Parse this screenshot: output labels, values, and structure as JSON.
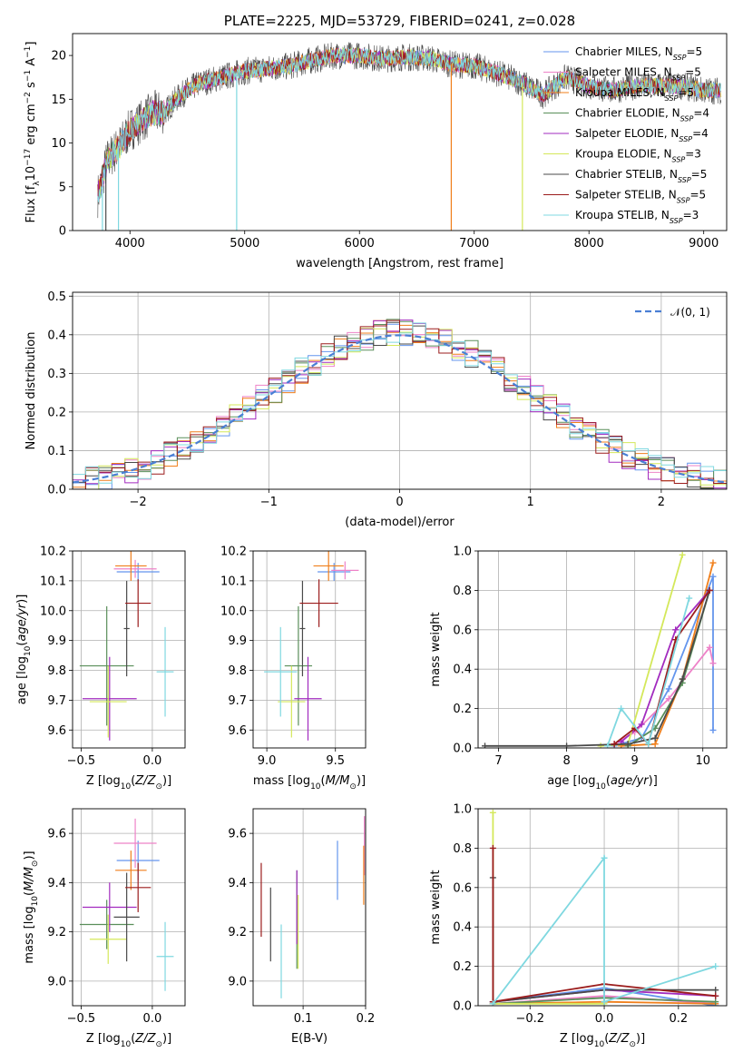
{
  "colors": {
    "chabrier_miles": "#6495ed",
    "salpeter_miles": "#ee82c8",
    "kroupa_miles": "#f07f1b",
    "chabrier_elodie": "#5a8f5a",
    "salpeter_elodie": "#a22bbf",
    "kroupa_elodie": "#d4e85a",
    "chabrier_stelib": "#4a4a4a",
    "salpeter_stelib": "#9b1c1c",
    "kroupa_stelib": "#7fd8e0"
  },
  "chart_data": [
    {
      "id": "spectrum",
      "type": "line",
      "title": "PLATE=2225, MJD=53729, FIBERID=0241, z=0.028",
      "xlabel": "wavelength [Angstrom, rest frame]",
      "ylabel": "Flux [f_λ 10^-17 erg cm^-2 s^-1 A^-1]",
      "xlim": [
        3500,
        9200
      ],
      "ylim": [
        0,
        22.5
      ],
      "xticks": [
        "4000",
        "5000",
        "6000",
        "7000",
        "8000",
        "9000"
      ],
      "yticks": [
        "0",
        "5",
        "10",
        "15",
        "20"
      ],
      "grid": false,
      "legend": "top-right",
      "continuum": {
        "x": [
          3720,
          3800,
          3900,
          4000,
          4100,
          4200,
          4300,
          4400,
          4500,
          4600,
          4800,
          5000,
          5200,
          5400,
          5600,
          5800,
          6000,
          6200,
          6400,
          6600,
          6800,
          7000,
          7200,
          7400,
          7600,
          7800,
          8000,
          8200,
          8400,
          8600,
          8800,
          9000,
          9150
        ],
        "y": [
          4,
          8,
          9.5,
          11.5,
          12.5,
          13.5,
          13.5,
          15,
          16,
          16.8,
          17.5,
          18.2,
          18.5,
          18.8,
          19.5,
          20,
          20,
          19.6,
          19.8,
          19.7,
          19,
          18.8,
          18,
          17,
          15.5,
          17.5,
          16.5,
          16,
          16.5,
          16.5,
          16.5,
          16,
          16
        ]
      },
      "series": [
        {
          "name": "Chabrier MILES, N_SSP=5",
          "legend_main": "Chabrier MILES, N",
          "legend_sub": "SSP",
          "legend_tail": "=5"
        },
        {
          "name": "Salpeter MILES, N_SSP=5",
          "legend_main": "Salpeter MILES, N",
          "legend_sub": "SSP",
          "legend_tail": "=5"
        },
        {
          "name": "Kroupa MILES, N_SSP=5",
          "legend_main": "Kroupa MILES, N",
          "legend_sub": "SSP",
          "legend_tail": "=5"
        },
        {
          "name": "Chabrier ELODIE, N_SSP=4",
          "legend_main": "Chabrier ELODIE, N",
          "legend_sub": "SSP",
          "legend_tail": "=4"
        },
        {
          "name": "Salpeter ELODIE, N_SSP=4",
          "legend_main": "Salpeter ELODIE, N",
          "legend_sub": "SSP",
          "legend_tail": "=4"
        },
        {
          "name": "Kroupa ELODIE, N_SSP=3",
          "legend_main": "Kroupa ELODIE, N",
          "legend_sub": "SSP",
          "legend_tail": "=3"
        },
        {
          "name": "Chabrier STELIB, N_SSP=5",
          "legend_main": "Chabrier STELIB, N",
          "legend_sub": "SSP",
          "legend_tail": "=5"
        },
        {
          "name": "Salpeter STELIB, N_SSP=5",
          "legend_main": "Salpeter STELIB, N",
          "legend_sub": "SSP",
          "legend_tail": "=5"
        },
        {
          "name": "Kroupa STELIB, N_SSP=3",
          "legend_main": "Kroupa STELIB, N",
          "legend_sub": "SSP",
          "legend_tail": "=3"
        }
      ]
    },
    {
      "id": "residuals",
      "type": "line",
      "xlabel": "(data-model)/error",
      "ylabel": "Normed distribution",
      "xlim": [
        -2.5,
        2.5
      ],
      "ylim": [
        0,
        0.51
      ],
      "xticks": [
        "−2",
        "−1",
        "0",
        "1",
        "2"
      ],
      "yticks": [
        "0.0",
        "0.1",
        "0.2",
        "0.3",
        "0.4",
        "0.5"
      ],
      "grid": true,
      "legend": "top-right",
      "legend_label": "𝒩(0, 1)"
    },
    {
      "id": "age_vs_Z",
      "type": "scatter",
      "xlabel": "Z [log10(Z/Z⊙)]",
      "ylabel": "age  [log10(age/yr)]",
      "xlim": [
        -0.56,
        0.23
      ],
      "ylim": [
        9.54,
        10.2
      ],
      "xticks": [
        "−0.5",
        "0.0"
      ],
      "yticks": [
        "9.6",
        "9.7",
        "9.8",
        "9.9",
        "10.0",
        "10.1",
        "10.2"
      ],
      "points": [
        {
          "s": 0,
          "x": -0.1,
          "y": 10.13,
          "xerr": 0.15,
          "yerr": 0.03
        },
        {
          "s": 1,
          "x": -0.12,
          "y": 10.14,
          "xerr": 0.15,
          "yerr": 0.03
        },
        {
          "s": 2,
          "x": -0.15,
          "y": 10.15,
          "xerr": 0.11,
          "yerr": 0.05
        },
        {
          "s": 3,
          "x": -0.32,
          "y": 9.815,
          "xerr": 0.19,
          "yerr": 0.2
        },
        {
          "s": 4,
          "x": -0.3,
          "y": 9.705,
          "xerr": 0.19,
          "yerr": 0.14
        },
        {
          "s": 5,
          "x": -0.31,
          "y": 9.695,
          "xerr": 0.13,
          "yerr": 0.12
        },
        {
          "s": 6,
          "x": -0.18,
          "y": 9.94,
          "xerr": 0.02,
          "yerr": 0.16
        },
        {
          "s": 7,
          "x": -0.1,
          "y": 10.025,
          "xerr": 0.09,
          "yerr": 0.08
        },
        {
          "s": 8,
          "x": 0.09,
          "y": 9.795,
          "xerr": 0.06,
          "yerr": 0.15
        }
      ]
    },
    {
      "id": "age_vs_mass",
      "type": "scatter",
      "xlabel": "mass [log10(M/M⊙)]",
      "ylabel": "",
      "xlim": [
        8.9,
        9.72
      ],
      "ylim": [
        9.54,
        10.2
      ],
      "xticks": [
        "9.0",
        "9.5"
      ],
      "yticks": [
        "9.6",
        "9.7",
        "9.8",
        "9.9",
        "10.0",
        "10.1",
        "10.2"
      ],
      "points": [
        {
          "s": 0,
          "x": 9.49,
          "y": 10.13,
          "xerr": 0.12,
          "yerr": 0.03
        },
        {
          "s": 1,
          "x": 9.57,
          "y": 10.135,
          "xerr": 0.1,
          "yerr": 0.03
        },
        {
          "s": 2,
          "x": 9.45,
          "y": 10.15,
          "xerr": 0.11,
          "yerr": 0.05
        },
        {
          "s": 3,
          "x": 9.23,
          "y": 9.815,
          "xerr": 0.1,
          "yerr": 0.2
        },
        {
          "s": 4,
          "x": 9.3,
          "y": 9.705,
          "xerr": 0.1,
          "yerr": 0.14
        },
        {
          "s": 5,
          "x": 9.18,
          "y": 9.695,
          "xerr": 0.1,
          "yerr": 0.12
        },
        {
          "s": 6,
          "x": 9.26,
          "y": 9.94,
          "xerr": 0.02,
          "yerr": 0.16
        },
        {
          "s": 7,
          "x": 9.38,
          "y": 10.025,
          "xerr": 0.14,
          "yerr": 0.08
        },
        {
          "s": 8,
          "x": 9.1,
          "y": 9.795,
          "xerr": 0.12,
          "yerr": 0.15
        }
      ]
    },
    {
      "id": "mass_weight_vs_age",
      "type": "line",
      "xlabel": "age  [log10(age/yr)]",
      "ylabel": "mass weight",
      "xlim": [
        6.7,
        10.35
      ],
      "ylim": [
        0,
        1
      ],
      "xticks": [
        "7",
        "8",
        "9",
        "10"
      ],
      "yticks": [
        "0.0",
        "0.2",
        "0.4",
        "0.6",
        "0.8",
        "1.0"
      ],
      "series": [
        {
          "s": 0,
          "x": [
            8.7,
            9.1,
            9.5,
            10.15,
            10.15
          ],
          "y": [
            0.01,
            0.05,
            0.3,
            0.87,
            0.09
          ]
        },
        {
          "s": 1,
          "x": [
            8.7,
            9.0,
            9.5,
            10.1,
            10.15
          ],
          "y": [
            0.02,
            0.08,
            0.25,
            0.51,
            0.43
          ]
        },
        {
          "s": 2,
          "x": [
            8.8,
            9.3,
            9.7,
            10.15
          ],
          "y": [
            0.01,
            0.02,
            0.35,
            0.94
          ]
        },
        {
          "s": 3,
          "x": [
            8.9,
            9.3,
            9.7,
            10.1
          ],
          "y": [
            0.01,
            0.1,
            0.33,
            0.8
          ]
        },
        {
          "s": 4,
          "x": [
            8.8,
            9.1,
            9.6,
            10.1
          ],
          "y": [
            0.03,
            0.12,
            0.6,
            0.8
          ]
        },
        {
          "s": 5,
          "x": [
            8.5,
            8.9,
            9.7
          ],
          "y": [
            0.01,
            0.02,
            0.98
          ]
        },
        {
          "s": 6,
          "x": [
            6.8,
            8.0,
            8.9,
            9.3,
            9.7,
            10.1
          ],
          "y": [
            0.01,
            0.01,
            0.02,
            0.05,
            0.35,
            0.8
          ]
        },
        {
          "s": 7,
          "x": [
            8.7,
            9.0,
            9.2,
            9.6,
            10.1
          ],
          "y": [
            0.02,
            0.1,
            0.02,
            0.55,
            0.8
          ]
        },
        {
          "s": 8,
          "x": [
            8.6,
            8.8,
            9.2,
            9.8
          ],
          "y": [
            0.01,
            0.2,
            0.02,
            0.76
          ]
        }
      ]
    },
    {
      "id": "mass_vs_Z",
      "type": "scatter",
      "xlabel": "Z [log10(Z/Z⊙)]",
      "ylabel": "mass [log10(M/M⊙)]",
      "xlim": [
        -0.56,
        0.23
      ],
      "ylim": [
        8.9,
        9.7
      ],
      "xticks": [
        "−0.5",
        "0.0"
      ],
      "yticks": [
        "9.0",
        "9.2",
        "9.4",
        "9.6"
      ],
      "points": [
        {
          "s": 0,
          "x": -0.1,
          "y": 9.49,
          "xerr": 0.15,
          "yerr": 0.08
        },
        {
          "s": 1,
          "x": -0.12,
          "y": 9.56,
          "xerr": 0.15,
          "yerr": 0.1
        },
        {
          "s": 2,
          "x": -0.15,
          "y": 9.45,
          "xerr": 0.11,
          "yerr": 0.08
        },
        {
          "s": 3,
          "x": -0.32,
          "y": 9.23,
          "xerr": 0.19,
          "yerr": 0.1
        },
        {
          "s": 4,
          "x": -0.3,
          "y": 9.3,
          "xerr": 0.19,
          "yerr": 0.1
        },
        {
          "s": 5,
          "x": -0.31,
          "y": 9.17,
          "xerr": 0.13,
          "yerr": 0.1
        },
        {
          "s": 6,
          "x": -0.18,
          "y": 9.26,
          "xerr": 0.09,
          "yerr": 0.18
        },
        {
          "s": 7,
          "x": -0.1,
          "y": 9.38,
          "xerr": 0.09,
          "yerr": 0.1
        },
        {
          "s": 8,
          "x": 0.09,
          "y": 9.1,
          "xerr": 0.06,
          "yerr": 0.14
        }
      ]
    },
    {
      "id": "mass_vs_ebv",
      "type": "scatter",
      "xlabel": "E(B-V)",
      "ylabel": "",
      "xlim": [
        0.02,
        0.2
      ],
      "ylim": [
        8.9,
        9.7
      ],
      "xticks": [
        "0.1",
        "0.2"
      ],
      "yticks": [
        "9.0",
        "9.2",
        "9.4",
        "9.6"
      ],
      "points": [
        {
          "s": 0,
          "x": 0.155,
          "y": 9.45,
          "xerr": 0,
          "yerr": 0.12
        },
        {
          "s": 1,
          "x": 0.198,
          "y": 9.55,
          "xerr": 0,
          "yerr": 0.12
        },
        {
          "s": 2,
          "x": 0.197,
          "y": 9.43,
          "xerr": 0,
          "yerr": 0.12
        },
        {
          "s": 3,
          "x": 0.09,
          "y": 9.25,
          "xerr": 0,
          "yerr": 0.2
        },
        {
          "s": 4,
          "x": 0.09,
          "y": 9.3,
          "xerr": 0,
          "yerr": 0.15
        },
        {
          "s": 5,
          "x": 0.092,
          "y": 9.2,
          "xerr": 0,
          "yerr": 0.15
        },
        {
          "s": 6,
          "x": 0.048,
          "y": 9.23,
          "xerr": 0,
          "yerr": 0.15
        },
        {
          "s": 7,
          "x": 0.033,
          "y": 9.33,
          "xerr": 0,
          "yerr": 0.15
        },
        {
          "s": 8,
          "x": 0.065,
          "y": 9.08,
          "xerr": 0,
          "yerr": 0.15
        }
      ]
    },
    {
      "id": "mass_weight_vs_Z",
      "type": "line",
      "xlabel": "Z [log10(Z/Z⊙)]",
      "ylabel": "mass weight",
      "xlim": [
        -0.34,
        0.33
      ],
      "ylim": [
        0,
        1
      ],
      "xticks": [
        "−0.2",
        "0.0",
        "0.2"
      ],
      "yticks": [
        "0.0",
        "0.2",
        "0.4",
        "0.6",
        "0.8",
        "1.0"
      ],
      "series": [
        {
          "s": 0,
          "x": [
            -0.3,
            0.0,
            0.3
          ],
          "y": [
            0.02,
            0.09,
            0.0
          ]
        },
        {
          "s": 1,
          "x": [
            -0.3,
            0.0,
            0.3
          ],
          "y": [
            0.01,
            0.05,
            0.01
          ]
        },
        {
          "s": 2,
          "x": [
            -0.3,
            0.0,
            0.3
          ],
          "y": [
            0.01,
            0.02,
            0.01
          ]
        },
        {
          "s": 3,
          "x": [
            -0.3,
            0.0,
            0.3
          ],
          "y": [
            0.01,
            0.04,
            0.02
          ]
        },
        {
          "s": 4,
          "x": [
            -0.3,
            0.0,
            0.3
          ],
          "y": [
            0.02,
            0.08,
            0.05
          ]
        },
        {
          "s": 5,
          "x": [
            -0.3,
            -0.3,
            0.0
          ],
          "y": [
            0.98,
            0.01,
            0.01
          ]
        },
        {
          "s": 6,
          "x": [
            -0.3,
            -0.3,
            0.0,
            0.3
          ],
          "y": [
            0.65,
            0.02,
            0.08,
            0.08
          ]
        },
        {
          "s": 7,
          "x": [
            -0.3,
            -0.3,
            0.0,
            0.3
          ],
          "y": [
            0.8,
            0.02,
            0.11,
            0.05
          ]
        },
        {
          "s": 8,
          "x": [
            -0.3,
            0.0,
            0.0,
            0.3
          ],
          "y": [
            0.01,
            0.75,
            0.02,
            0.2
          ]
        }
      ]
    }
  ]
}
